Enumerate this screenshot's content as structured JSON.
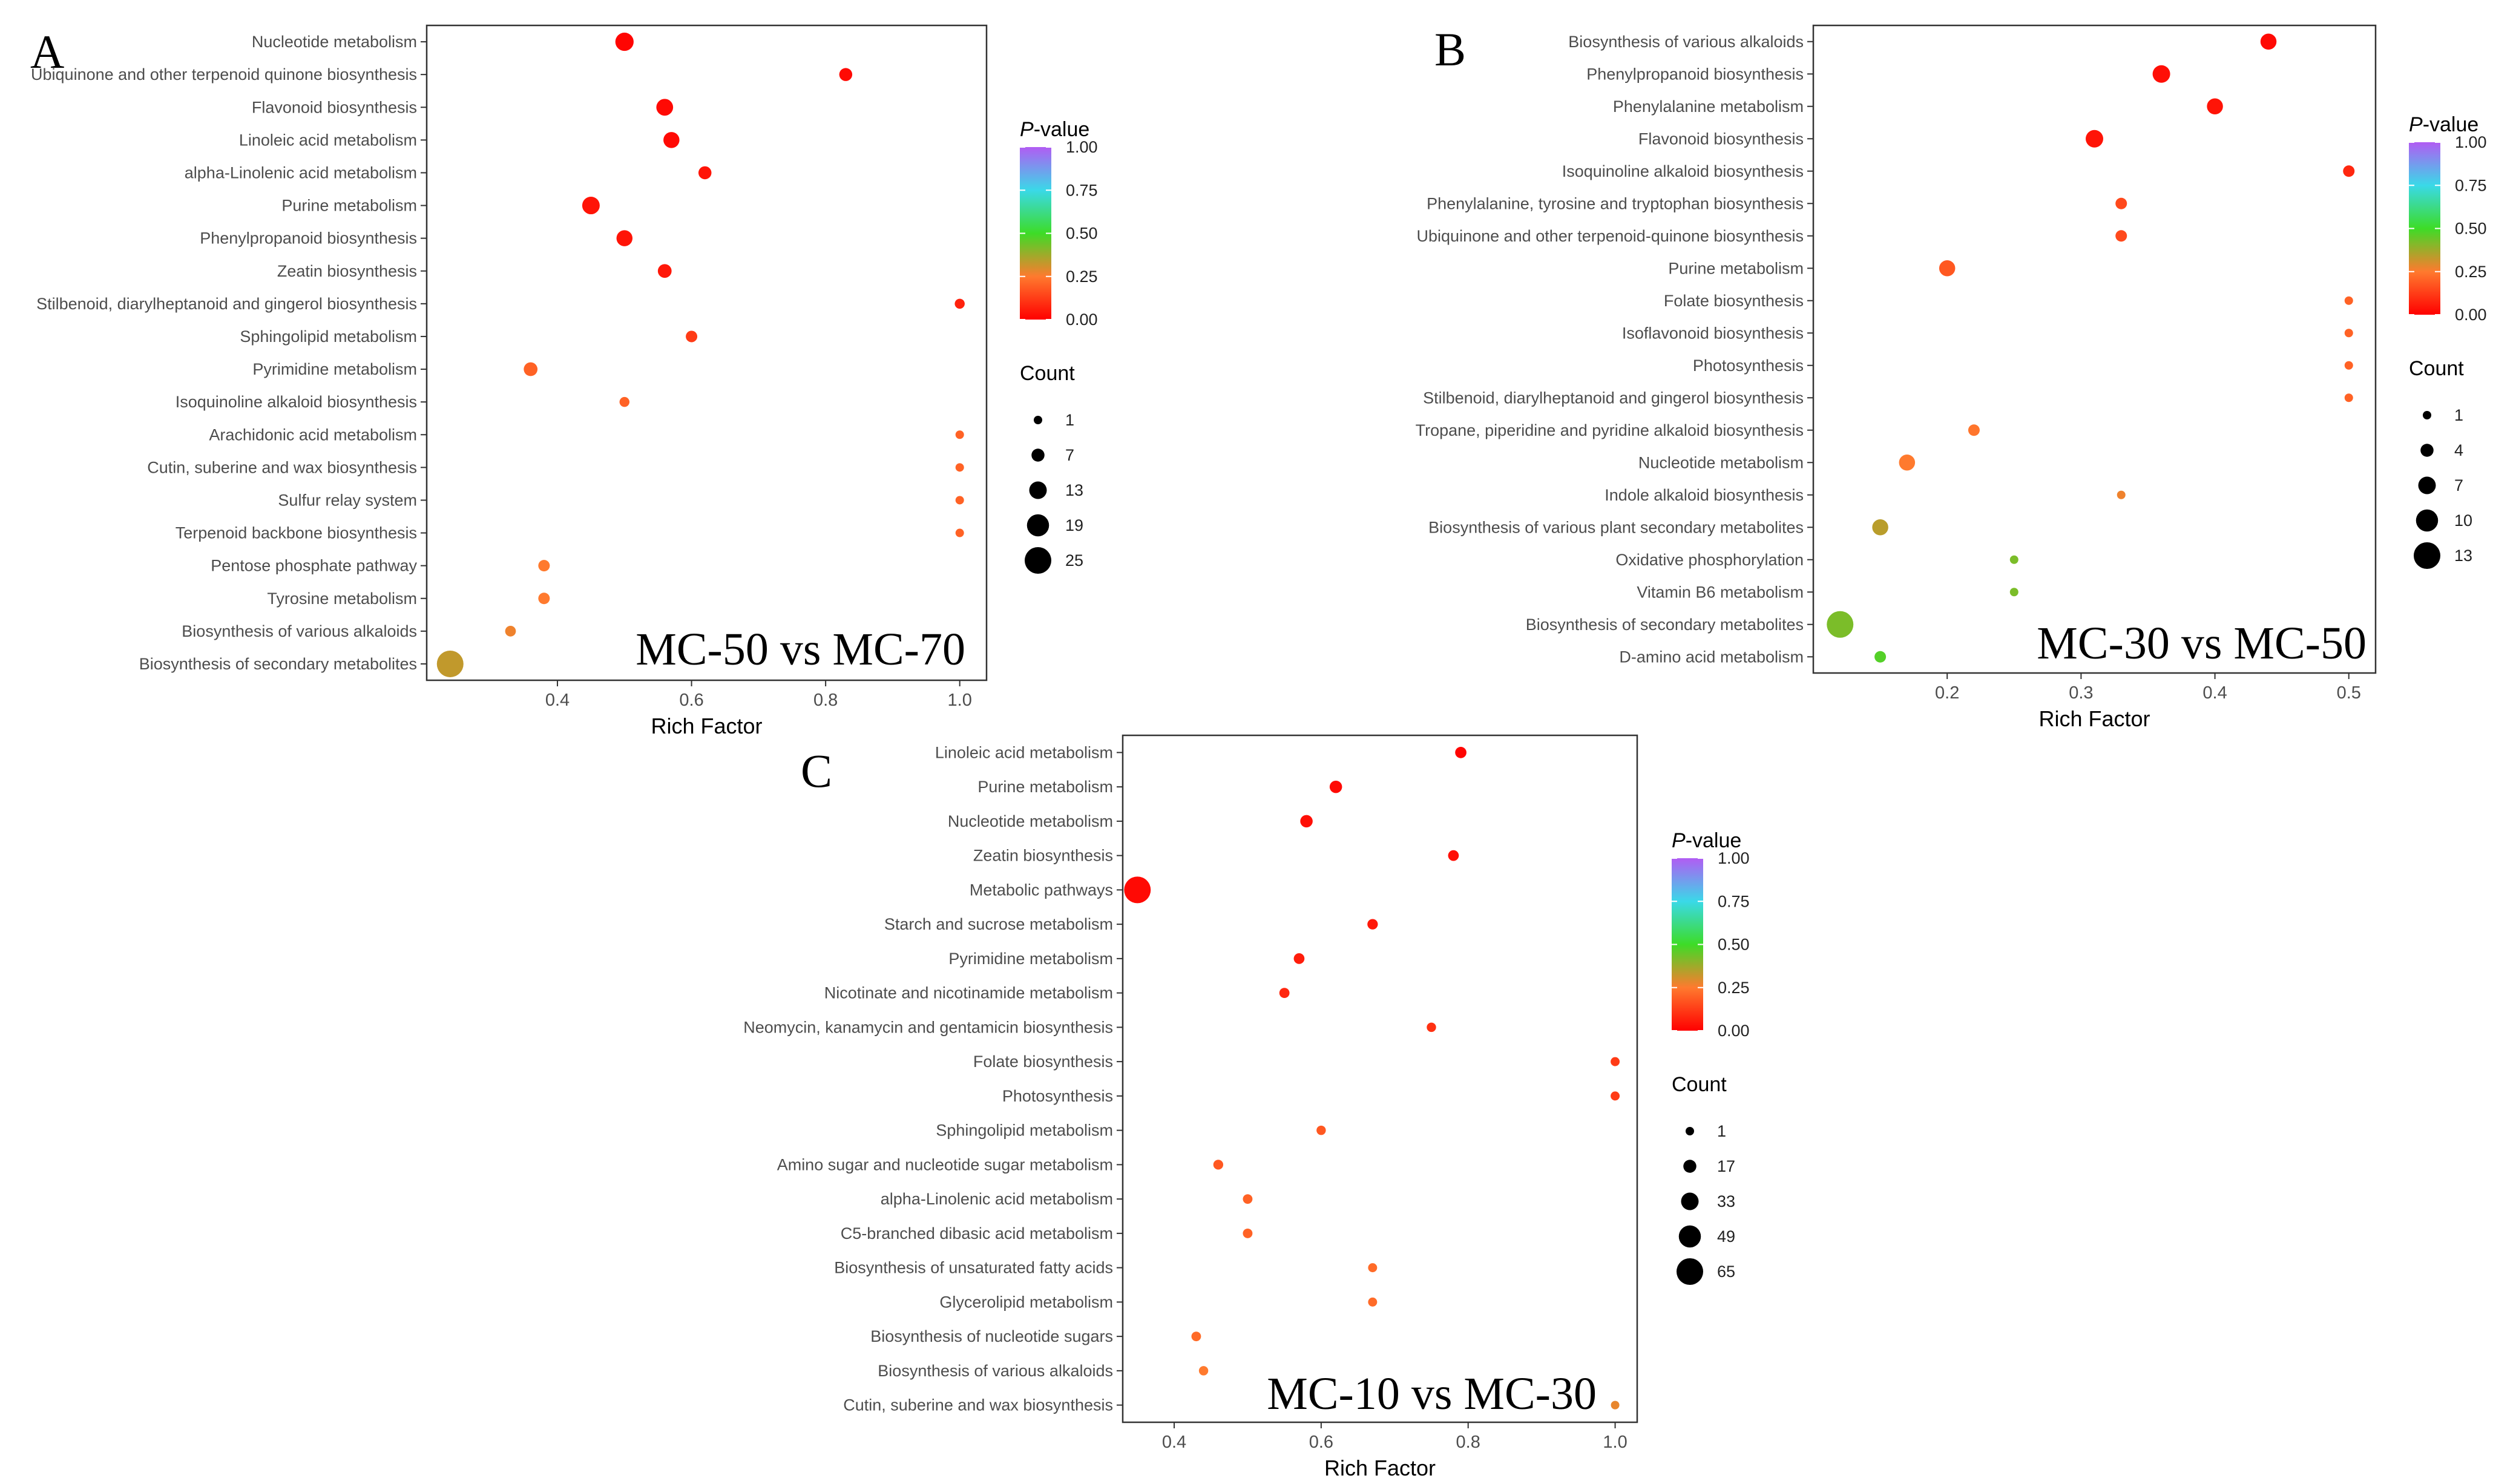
{
  "chart_data": [
    {
      "type": "scatter",
      "panel_label": "A",
      "comparison": "MC-50 vs MC-70",
      "xlabel": "Rich Factor",
      "x_ticks": [
        "0.4",
        "0.6",
        "0.8",
        "1.0"
      ],
      "x_tick_values": [
        0.4,
        0.6,
        0.8,
        1.0
      ],
      "xlim": [
        0.205,
        1.04
      ],
      "color_legend": {
        "title_italic": "P",
        "title_rest": "-value",
        "ticks": [
          "1.00",
          "0.75",
          "0.50",
          "0.25",
          "0.00"
        ],
        "tick_values": [
          1.0,
          0.75,
          0.5,
          0.25,
          0.0
        ]
      },
      "size_legend": {
        "title": "Count",
        "labels": [
          "1",
          "7",
          "13",
          "19",
          "25"
        ],
        "values": [
          1,
          7,
          13,
          19,
          25
        ]
      },
      "points": [
        {
          "pathway": "Nucleotide metabolism",
          "rich_factor": 0.5,
          "count": 14,
          "p_value": 0.01
        },
        {
          "pathway": "Ubiquinone and other terpenoid quinone biosynthesis",
          "rich_factor": 0.83,
          "count": 7,
          "p_value": 0.02
        },
        {
          "pathway": "Flavonoid biosynthesis",
          "rich_factor": 0.56,
          "count": 12,
          "p_value": 0.02
        },
        {
          "pathway": "Linoleic acid metabolism",
          "rich_factor": 0.57,
          "count": 11,
          "p_value": 0.02
        },
        {
          "pathway": "alpha-Linolenic acid metabolism",
          "rich_factor": 0.62,
          "count": 7,
          "p_value": 0.04
        },
        {
          "pathway": "Purine metabolism",
          "rich_factor": 0.45,
          "count": 13,
          "p_value": 0.04
        },
        {
          "pathway": "Phenylpropanoid biosynthesis",
          "rich_factor": 0.5,
          "count": 11,
          "p_value": 0.04
        },
        {
          "pathway": "Zeatin biosynthesis",
          "rich_factor": 0.56,
          "count": 8,
          "p_value": 0.05
        },
        {
          "pathway": "Stilbenoid, diarylheptanoid and gingerol biosynthesis",
          "rich_factor": 1.0,
          "count": 3,
          "p_value": 0.07
        },
        {
          "pathway": "Sphingolipid metabolism",
          "rich_factor": 0.6,
          "count": 5,
          "p_value": 0.12
        },
        {
          "pathway": "Pyrimidine metabolism",
          "rich_factor": 0.36,
          "count": 8,
          "p_value": 0.2
        },
        {
          "pathway": "Isoquinoline alkaloid biosynthesis",
          "rich_factor": 0.5,
          "count": 3,
          "p_value": 0.2
        },
        {
          "pathway": "Arachidonic acid metabolism",
          "rich_factor": 1.0,
          "count": 1,
          "p_value": 0.2
        },
        {
          "pathway": "Cutin, suberine and wax biosynthesis",
          "rich_factor": 1.0,
          "count": 1,
          "p_value": 0.2
        },
        {
          "pathway": "Sulfur relay system",
          "rich_factor": 1.0,
          "count": 1,
          "p_value": 0.2
        },
        {
          "pathway": "Terpenoid backbone biosynthesis",
          "rich_factor": 1.0,
          "count": 1,
          "p_value": 0.2
        },
        {
          "pathway": "Pentose phosphate pathway",
          "rich_factor": 0.38,
          "count": 5,
          "p_value": 0.25
        },
        {
          "pathway": "Tyrosine metabolism",
          "rich_factor": 0.38,
          "count": 5,
          "p_value": 0.25
        },
        {
          "pathway": "Biosynthesis of various alkaloids",
          "rich_factor": 0.33,
          "count": 4,
          "p_value": 0.27
        },
        {
          "pathway": "Biosynthesis of secondary metabolites",
          "rich_factor": 0.24,
          "count": 25,
          "p_value": 0.33
        }
      ]
    },
    {
      "type": "scatter",
      "panel_label": "B",
      "comparison": "MC-30 vs MC-50",
      "xlabel": "Rich Factor",
      "x_ticks": [
        "0.2",
        "0.3",
        "0.4",
        "0.5"
      ],
      "x_tick_values": [
        0.2,
        0.3,
        0.4,
        0.5
      ],
      "xlim": [
        0.1,
        0.52
      ],
      "color_legend": {
        "title_italic": "P",
        "title_rest": "-value",
        "ticks": [
          "1.00",
          "0.75",
          "0.50",
          "0.25",
          "0.00"
        ],
        "tick_values": [
          1.0,
          0.75,
          0.5,
          0.25,
          0.0
        ]
      },
      "size_legend": {
        "title": "Count",
        "labels": [
          "1",
          "4",
          "7",
          "10",
          "13"
        ],
        "values": [
          1,
          4,
          7,
          10,
          13
        ]
      },
      "points": [
        {
          "pathway": "Biosynthesis of various alkaloids",
          "rich_factor": 0.44,
          "count": 6,
          "p_value": 0.02
        },
        {
          "pathway": "Phenylpropanoid biosynthesis",
          "rich_factor": 0.36,
          "count": 7,
          "p_value": 0.03
        },
        {
          "pathway": "Phenylalanine metabolism",
          "rich_factor": 0.4,
          "count": 6,
          "p_value": 0.04
        },
        {
          "pathway": "Flavonoid biosynthesis",
          "rich_factor": 0.31,
          "count": 7,
          "p_value": 0.04
        },
        {
          "pathway": "Isoquinoline alkaloid biosynthesis",
          "rich_factor": 0.5,
          "count": 3,
          "p_value": 0.08
        },
        {
          "pathway": "Phenylalanine, tyrosine and tryptophan biosynthesis",
          "rich_factor": 0.33,
          "count": 3,
          "p_value": 0.15
        },
        {
          "pathway": "Ubiquinone and other terpenoid-quinone biosynthesis",
          "rich_factor": 0.33,
          "count": 3,
          "p_value": 0.15
        },
        {
          "pathway": "Purine metabolism",
          "rich_factor": 0.2,
          "count": 6,
          "p_value": 0.18
        },
        {
          "pathway": "Folate biosynthesis",
          "rich_factor": 0.5,
          "count": 1,
          "p_value": 0.2
        },
        {
          "pathway": "Isoflavonoid biosynthesis",
          "rich_factor": 0.5,
          "count": 1,
          "p_value": 0.2
        },
        {
          "pathway": "Photosynthesis",
          "rich_factor": 0.5,
          "count": 1,
          "p_value": 0.2
        },
        {
          "pathway": "Stilbenoid, diarylheptanoid and gingerol biosynthesis",
          "rich_factor": 0.5,
          "count": 1,
          "p_value": 0.2
        },
        {
          "pathway": "Tropane, piperidine and pyridine alkaloid biosynthesis",
          "rich_factor": 0.22,
          "count": 3,
          "p_value": 0.24
        },
        {
          "pathway": "Nucleotide metabolism",
          "rich_factor": 0.17,
          "count": 6,
          "p_value": 0.25
        },
        {
          "pathway": "Indole alkaloid biosynthesis",
          "rich_factor": 0.33,
          "count": 1,
          "p_value": 0.27
        },
        {
          "pathway": "Biosynthesis of various plant secondary metabolites",
          "rich_factor": 0.15,
          "count": 6,
          "p_value": 0.34
        },
        {
          "pathway": "Oxidative phosphorylation",
          "rich_factor": 0.25,
          "count": 1,
          "p_value": 0.42
        },
        {
          "pathway": "Vitamin B6 metabolism",
          "rich_factor": 0.25,
          "count": 1,
          "p_value": 0.42
        },
        {
          "pathway": "Biosynthesis of secondary metabolites",
          "rich_factor": 0.12,
          "count": 13,
          "p_value": 0.42
        },
        {
          "pathway": "D-amino acid metabolism",
          "rich_factor": 0.15,
          "count": 3,
          "p_value": 0.47
        }
      ]
    },
    {
      "type": "scatter",
      "panel_label": "C",
      "comparison": "MC-10 vs MC-30",
      "xlabel": "Rich Factor",
      "x_ticks": [
        "0.4",
        "0.6",
        "0.8",
        "1.0"
      ],
      "x_tick_values": [
        0.4,
        0.6,
        0.8,
        1.0
      ],
      "xlim": [
        0.33,
        1.03
      ],
      "color_legend": {
        "title_italic": "P",
        "title_rest": "-value",
        "ticks": [
          "1.00",
          "0.75",
          "0.50",
          "0.25",
          "0.00"
        ],
        "tick_values": [
          1.0,
          0.75,
          0.5,
          0.25,
          0.0
        ]
      },
      "size_legend": {
        "title": "Count",
        "labels": [
          "1",
          "17",
          "33",
          "49",
          "65"
        ],
        "values": [
          1,
          17,
          33,
          49,
          65
        ]
      },
      "points": [
        {
          "pathway": "Linoleic acid metabolism",
          "rich_factor": 0.79,
          "count": 11,
          "p_value": 0.01
        },
        {
          "pathway": "Purine metabolism",
          "rich_factor": 0.62,
          "count": 15,
          "p_value": 0.02
        },
        {
          "pathway": "Nucleotide metabolism",
          "rich_factor": 0.58,
          "count": 15,
          "p_value": 0.03
        },
        {
          "pathway": "Zeatin biosynthesis",
          "rich_factor": 0.78,
          "count": 9,
          "p_value": 0.03
        },
        {
          "pathway": "Metabolic pathways",
          "rich_factor": 0.35,
          "count": 65,
          "p_value": 0.02
        },
        {
          "pathway": "Starch and sucrose metabolism",
          "rich_factor": 0.67,
          "count": 8,
          "p_value": 0.05
        },
        {
          "pathway": "Pyrimidine metabolism",
          "rich_factor": 0.57,
          "count": 9,
          "p_value": 0.06
        },
        {
          "pathway": "Nicotinate and nicotinamide metabolism",
          "rich_factor": 0.55,
          "count": 7,
          "p_value": 0.08
        },
        {
          "pathway": "Neomycin, kanamycin and gentamicin biosynthesis",
          "rich_factor": 0.75,
          "count": 4,
          "p_value": 0.1
        },
        {
          "pathway": "Folate biosynthesis",
          "rich_factor": 1.0,
          "count": 3,
          "p_value": 0.12
        },
        {
          "pathway": "Photosynthesis",
          "rich_factor": 1.0,
          "count": 3,
          "p_value": 0.12
        },
        {
          "pathway": "Sphingolipid metabolism",
          "rich_factor": 0.6,
          "count": 4,
          "p_value": 0.18
        },
        {
          "pathway": "Amino sugar and nucleotide sugar metabolism",
          "rich_factor": 0.46,
          "count": 6,
          "p_value": 0.18
        },
        {
          "pathway": "alpha-Linolenic acid metabolism",
          "rich_factor": 0.5,
          "count": 5,
          "p_value": 0.2
        },
        {
          "pathway": "C5-branched dibasic acid metabolism",
          "rich_factor": 0.5,
          "count": 5,
          "p_value": 0.2
        },
        {
          "pathway": "Biosynthesis of unsaturated fatty acids",
          "rich_factor": 0.67,
          "count": 3,
          "p_value": 0.22
        },
        {
          "pathway": "Glycerolipid metabolism",
          "rich_factor": 0.67,
          "count": 3,
          "p_value": 0.22
        },
        {
          "pathway": "Biosynthesis of nucleotide sugars",
          "rich_factor": 0.43,
          "count": 5,
          "p_value": 0.22
        },
        {
          "pathway": "Biosynthesis of various alkaloids",
          "rich_factor": 0.44,
          "count": 4,
          "p_value": 0.25
        },
        {
          "pathway": "Cutin, suberine and wax biosynthesis",
          "rich_factor": 1.0,
          "count": 1,
          "p_value": 0.28
        }
      ]
    }
  ]
}
